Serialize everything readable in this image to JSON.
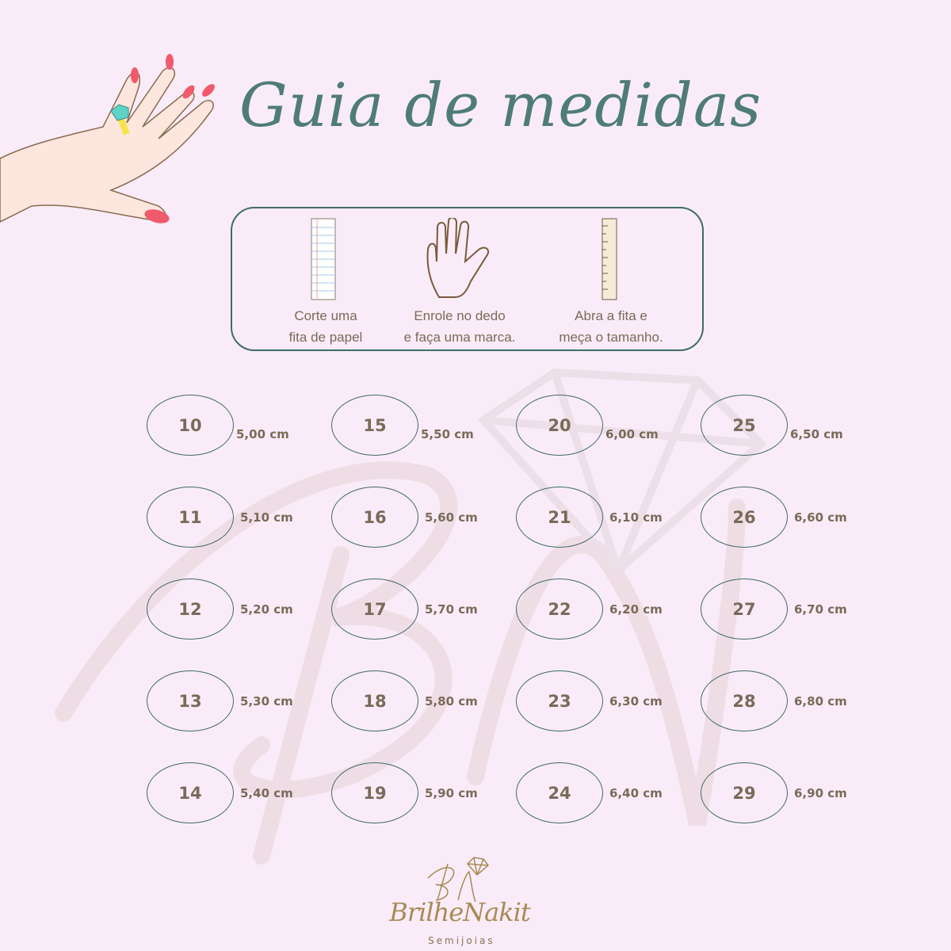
{
  "title": "Guia de medidas",
  "steps": [
    {
      "icon": "paper-strip-icon",
      "line1": "Corte uma",
      "line2": "fita de papel"
    },
    {
      "icon": "hand-icon",
      "line1": "Enrole no dedo",
      "line2": "e faça uma marca."
    },
    {
      "icon": "ruler-icon",
      "line1": "Abra a fita e",
      "line2": "meça o tamanho."
    }
  ],
  "sizes": [
    {
      "size": "10",
      "cm": "5,00 cm"
    },
    {
      "size": "11",
      "cm": "5,10 cm"
    },
    {
      "size": "12",
      "cm": "5,20 cm"
    },
    {
      "size": "13",
      "cm": "5,30 cm"
    },
    {
      "size": "14",
      "cm": "5,40 cm"
    },
    {
      "size": "15",
      "cm": "5,50 cm"
    },
    {
      "size": "16",
      "cm": "5,60 cm"
    },
    {
      "size": "17",
      "cm": "5,70 cm"
    },
    {
      "size": "18",
      "cm": "5,80 cm"
    },
    {
      "size": "19",
      "cm": "5,90 cm"
    },
    {
      "size": "20",
      "cm": "6,00 cm"
    },
    {
      "size": "21",
      "cm": "6,10 cm"
    },
    {
      "size": "22",
      "cm": "6,20 cm"
    },
    {
      "size": "23",
      "cm": "6,30 cm"
    },
    {
      "size": "24",
      "cm": "6,40 cm"
    },
    {
      "size": "25",
      "cm": "6,50 cm"
    },
    {
      "size": "26",
      "cm": "6,60 cm"
    },
    {
      "size": "27",
      "cm": "6,70 cm"
    },
    {
      "size": "28",
      "cm": "6,80 cm"
    },
    {
      "size": "29",
      "cm": "6,90 cm"
    }
  ],
  "logo": {
    "name": "BrilheNakit",
    "subtitle": "Semijoias"
  },
  "colors": {
    "background": "#f9ecf8",
    "accent": "#4f7c78",
    "text": "#7a6a58",
    "gold": "#a88a55"
  }
}
